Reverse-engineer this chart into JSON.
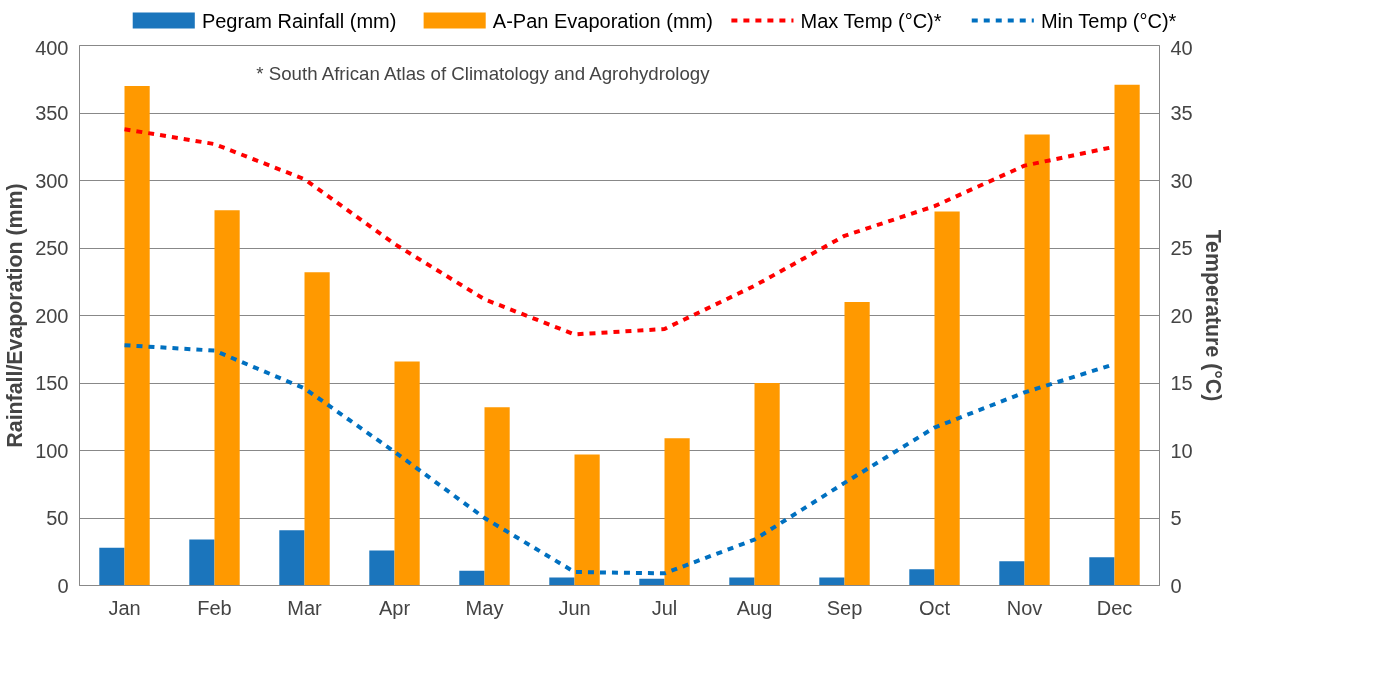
{
  "chart_data": {
    "type": "bar",
    "ylabel": "Rainfall/Evaporation (mm)",
    "y2label": "Temperature (°C)",
    "categories": [
      "Jan",
      "Feb",
      "Mar",
      "Apr",
      "May",
      "Jun",
      "Jul",
      "Aug",
      "Sep",
      "Oct",
      "Nov",
      "Dec"
    ],
    "series": [
      {
        "name": "Pegram Rainfall (mm)",
        "color": "#1b75bc",
        "values": [
          28,
          34,
          41,
          26,
          11,
          6,
          5,
          6,
          6,
          12,
          18,
          21
        ]
      },
      {
        "name": "A-Pan Evaporation (mm)",
        "color": "#ff9900",
        "values": [
          370,
          278,
          232,
          166,
          132,
          97,
          109,
          150,
          210,
          277,
          334,
          371
        ]
      },
      {
        "name": "Max Temp (°C)*",
        "type": "line",
        "axis": "y2",
        "color": "#ff0000",
        "line_style": "dashed",
        "values": [
          33.8,
          32.7,
          30.1,
          25.3,
          21.2,
          18.6,
          19.0,
          22.2,
          25.9,
          28.1,
          31.1,
          32.5
        ]
      },
      {
        "name": "Min Temp (°C)*",
        "type": "line",
        "axis": "y2",
        "color": "#0070c0",
        "line_style": "dashed",
        "values": [
          17.8,
          17.4,
          14.6,
          9.9,
          5.0,
          1.0,
          0.9,
          3.4,
          7.6,
          11.7,
          14.3,
          16.4
        ]
      }
    ],
    "ylim": [
      0,
      400
    ],
    "yticks": [
      0,
      50,
      100,
      150,
      200,
      250,
      300,
      350,
      400
    ],
    "y2lim": [
      0,
      40
    ],
    "y2ticks": [
      0,
      5,
      10,
      15,
      20,
      25,
      30,
      35,
      40
    ],
    "grid": "y",
    "legend": "top",
    "marker": "none",
    "annotations": [
      "* South African Atlas of Climatology and Agrohydrology"
    ]
  }
}
